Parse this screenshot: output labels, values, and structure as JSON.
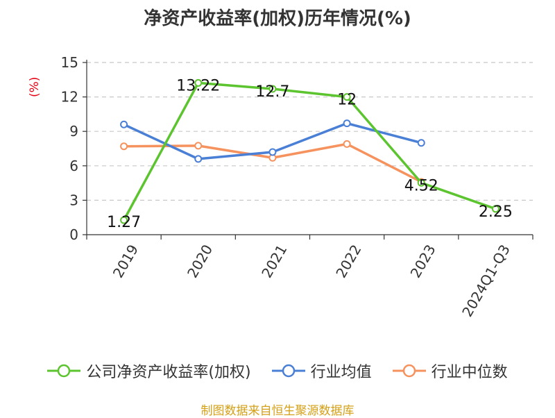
{
  "chart_data": {
    "type": "line",
    "title": "净资产收益率(加权)历年情况(%)",
    "ylabel": "(%)",
    "xlabel": "",
    "categories": [
      "2019",
      "2020",
      "2021",
      "2022",
      "2023",
      "2024Q1-Q3"
    ],
    "ylim": [
      0,
      15
    ],
    "yticks": [
      0,
      3,
      6,
      9,
      12,
      15
    ],
    "grid": true,
    "legend_position": "bottom",
    "series": [
      {
        "name": "公司净资产收益率(加权)",
        "color": "#5cc42e",
        "values": [
          1.27,
          13.22,
          12.7,
          12,
          4.52,
          2.25
        ],
        "labels": [
          "1.27",
          "13.22",
          "12.7",
          "12",
          "4.52",
          "2.25"
        ],
        "show_labels": true
      },
      {
        "name": "行业均值",
        "color": "#4a7fd6",
        "values": [
          9.6,
          6.6,
          7.2,
          9.7,
          8.0,
          null
        ],
        "show_labels": false
      },
      {
        "name": "行业中位数",
        "color": "#f5925e",
        "values": [
          7.7,
          7.75,
          6.7,
          7.9,
          4.6,
          null
        ],
        "show_labels": false
      }
    ]
  },
  "source": "制图数据来自恒生聚源数据库"
}
